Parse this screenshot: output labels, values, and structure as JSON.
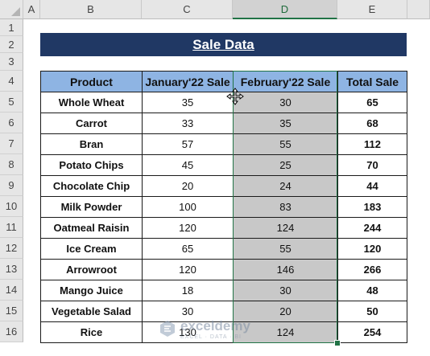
{
  "columns": [
    "A",
    "B",
    "C",
    "D",
    "E"
  ],
  "selected_column": "D",
  "rows": [
    "1",
    "2",
    "3",
    "4",
    "5",
    "6",
    "7",
    "8",
    "9",
    "10",
    "11",
    "12",
    "13",
    "14",
    "15",
    "16"
  ],
  "title": "Sale Data",
  "table": {
    "headers": [
      "Product",
      "January'22 Sale",
      "February'22 Sale",
      "Total Sale"
    ],
    "rows": [
      [
        "Whole Wheat",
        "35",
        "30",
        "65"
      ],
      [
        "Carrot",
        "33",
        "35",
        "68"
      ],
      [
        "Bran",
        "57",
        "55",
        "112"
      ],
      [
        "Potato Chips",
        "45",
        "25",
        "70"
      ],
      [
        "Chocolate Chip",
        "20",
        "24",
        "44"
      ],
      [
        "Milk Powder",
        "100",
        "83",
        "183"
      ],
      [
        "Oatmeal Raisin",
        "120",
        "124",
        "244"
      ],
      [
        "Ice Cream",
        "65",
        "55",
        "120"
      ],
      [
        "Arrowroot",
        "120",
        "146",
        "266"
      ],
      [
        "Mango Juice",
        "18",
        "30",
        "48"
      ],
      [
        "Vegetable Salad",
        "30",
        "20",
        "50"
      ],
      [
        "Rice",
        "130",
        "124",
        "254"
      ]
    ]
  },
  "watermark": {
    "name": "exceldemy",
    "tagline": "EXCEL · DATA · BI",
    "icon": "exceldemy-logo-icon"
  },
  "cursor": {
    "icon": "move-cursor-icon"
  },
  "colors": {
    "title_bg": "#203864",
    "header_bg": "#8eb4e3",
    "selected_fill": "#c8c8c8",
    "selection_border": "#217346"
  }
}
